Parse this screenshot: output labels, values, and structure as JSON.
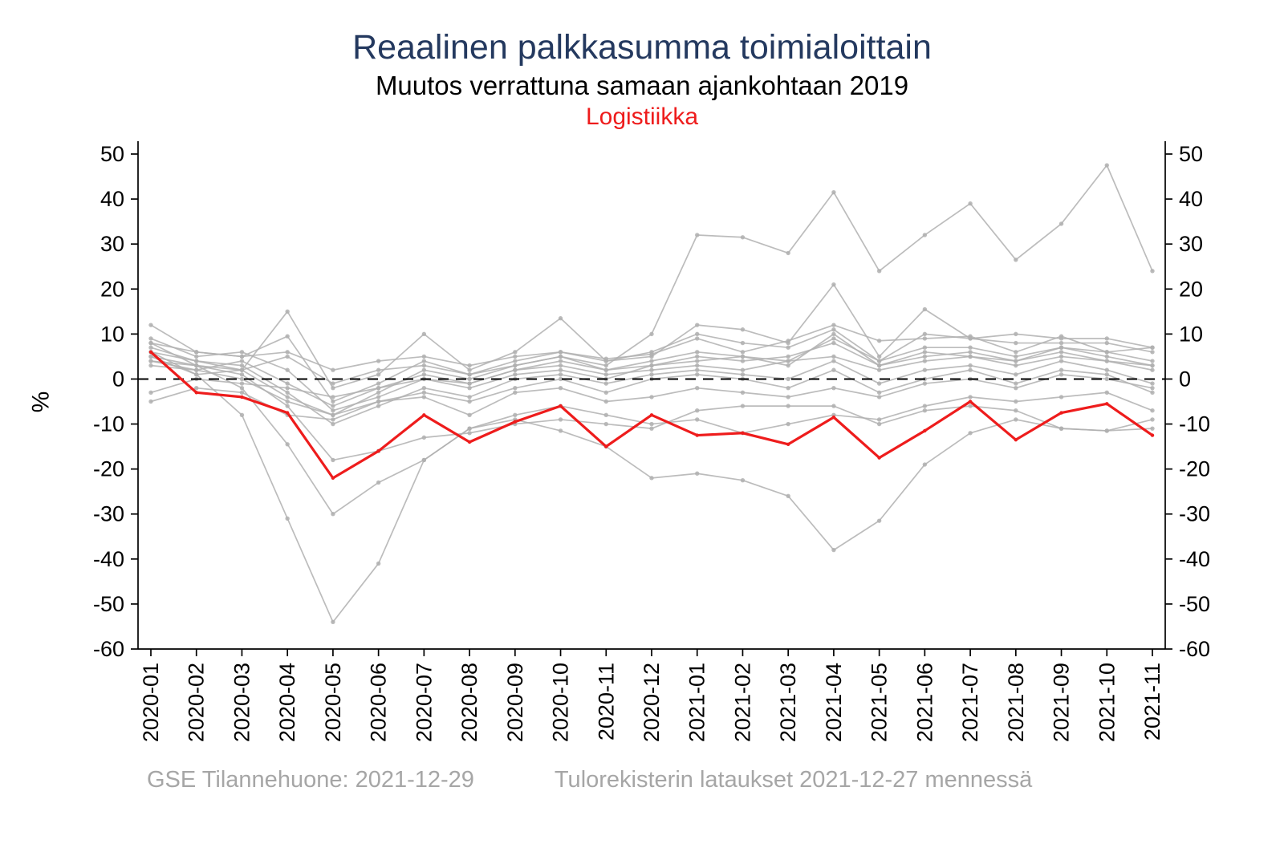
{
  "footer": {
    "left": "GSE Tilannehuone: 2021-12-29",
    "right": "Tulorekisterin lataukset 2021-12-27 mennessä"
  },
  "colors": {
    "title_navy": "#24395f",
    "highlight": "#ee1c1c",
    "gray_series": "#b0b0b0",
    "footer_gray": "#a6a6a6",
    "axis": "#000000"
  },
  "chart_data": {
    "type": "line",
    "title": "Reaalinen palkkasumma toimialoittain",
    "subtitle": "Muutos verrattuna samaan ajankohtaan 2019",
    "highlight_label": "Logistiikka",
    "xlabel": "",
    "ylabel": "%",
    "ylim": [
      -60,
      50
    ],
    "yticks": [
      50,
      40,
      30,
      20,
      10,
      0,
      -10,
      -20,
      -30,
      -40,
      -50,
      -60
    ],
    "grid": false,
    "zero_line_dashed": true,
    "mirrored_right_axis": true,
    "legend": "none",
    "x": [
      "2020-01",
      "2020-02",
      "2020-03",
      "2020-04",
      "2020-05",
      "2020-06",
      "2020-07",
      "2020-08",
      "2020-09",
      "2020-10",
      "2020-11",
      "2020-12",
      "2021-01",
      "2021-02",
      "2021-03",
      "2021-04",
      "2021-05",
      "2021-06",
      "2021-07",
      "2021-08",
      "2021-09",
      "2021-10",
      "2021-11"
    ],
    "series": [
      {
        "name": "Logistiikka",
        "highlight": true,
        "values": [
          6,
          -3,
          -4,
          -7.5,
          -22,
          -16,
          -8,
          -14,
          -9.5,
          -6,
          -15,
          -8,
          -12.5,
          -12,
          -14.5,
          -8.5,
          -17.5,
          -11.5,
          -5,
          -13.5,
          -7.5,
          -5.5,
          -12.5
        ]
      },
      {
        "highlight": false,
        "values": [
          5,
          1,
          -8,
          -31,
          -54,
          -41,
          -18,
          -11,
          -8,
          -6,
          -8,
          -10,
          -9,
          -12,
          -10,
          -8,
          -9,
          -6,
          -4,
          -5,
          -4,
          -3,
          -7
        ]
      },
      {
        "highlight": false,
        "values": [
          8,
          3,
          -2,
          -14.5,
          -30,
          -23,
          -18,
          -11,
          -9,
          -11.5,
          -15,
          -22,
          -21,
          -22.5,
          -26,
          -38,
          -31.5,
          -19,
          -12,
          -9,
          -11,
          -11.5,
          -11
        ]
      },
      {
        "highlight": false,
        "values": [
          4,
          2,
          0,
          -5,
          -8,
          -3,
          2,
          0,
          3,
          5,
          3,
          10,
          32,
          31.5,
          28,
          41.5,
          24,
          32,
          39,
          26.5,
          34.5,
          47.5,
          24
        ]
      },
      {
        "highlight": false,
        "values": [
          6,
          4,
          2,
          15,
          -2,
          1,
          10,
          2,
          6,
          13.5,
          4,
          5,
          12,
          11,
          8,
          21,
          5,
          15.5,
          9,
          10,
          9,
          9,
          7
        ]
      },
      {
        "highlight": false,
        "values": [
          12,
          6,
          5,
          9.5,
          -5,
          -1,
          4,
          1,
          4,
          6,
          4.5,
          5.5,
          9,
          6,
          8.5,
          12,
          8.5,
          9,
          9.5,
          6,
          9.5,
          6,
          7
        ]
      },
      {
        "highlight": false,
        "values": [
          9,
          5,
          6,
          2,
          -7,
          -4,
          0,
          -2,
          1,
          2,
          0,
          3,
          4,
          5,
          3,
          10,
          3,
          5,
          6,
          4,
          7,
          5,
          3
        ]
      },
      {
        "highlight": false,
        "values": [
          7,
          4,
          3,
          -3,
          -10,
          -6,
          -2,
          -4,
          0,
          1,
          -1,
          1,
          2,
          1,
          0,
          4,
          -1,
          2,
          3,
          1,
          4,
          2,
          -1
        ]
      },
      {
        "highlight": false,
        "values": [
          5,
          3,
          1,
          -6,
          -18,
          -16,
          -13,
          -12,
          -10,
          -9,
          -10,
          -11,
          -7,
          -6,
          -6,
          -6,
          -10,
          -7,
          -6,
          -7,
          -11,
          -11.5,
          -9
        ]
      },
      {
        "highlight": false,
        "values": [
          -3,
          0,
          -1,
          -2,
          -4,
          -2,
          0,
          -1,
          2,
          3,
          1,
          2,
          3,
          2,
          4,
          5,
          2,
          4,
          5,
          3,
          5,
          4,
          2
        ]
      },
      {
        "highlight": false,
        "values": [
          -5,
          -2,
          -3,
          -8,
          -9,
          -5,
          -4,
          -8,
          -3,
          -2,
          -5,
          -4,
          -2,
          -3,
          -4,
          -2,
          -4,
          -1,
          0,
          -2,
          1,
          0,
          -2
        ]
      },
      {
        "highlight": false,
        "values": [
          8,
          6,
          5,
          6,
          2,
          4,
          5,
          3,
          5,
          6,
          4,
          6,
          10,
          8,
          7,
          11,
          4,
          10,
          9,
          8,
          8,
          8,
          6
        ]
      },
      {
        "highlight": false,
        "values": [
          3,
          2,
          4,
          -1,
          -6,
          -2,
          1,
          -1,
          2,
          4,
          2,
          3,
          5,
          4,
          5,
          8,
          3,
          6,
          5,
          4,
          6,
          4,
          3
        ]
      },
      {
        "highlight": false,
        "values": [
          6,
          1,
          2,
          -4,
          -8,
          -5,
          -3,
          -5,
          -2,
          0,
          -3,
          0,
          1,
          0,
          -2,
          2,
          -3,
          0,
          2,
          -1,
          2,
          1,
          -3
        ]
      },
      {
        "highlight": false,
        "values": [
          4,
          3,
          2,
          5,
          -1,
          2,
          3,
          1,
          3,
          5,
          2,
          4,
          6,
          5,
          4,
          9,
          4,
          7,
          7,
          5,
          7,
          6,
          4
        ]
      }
    ]
  }
}
